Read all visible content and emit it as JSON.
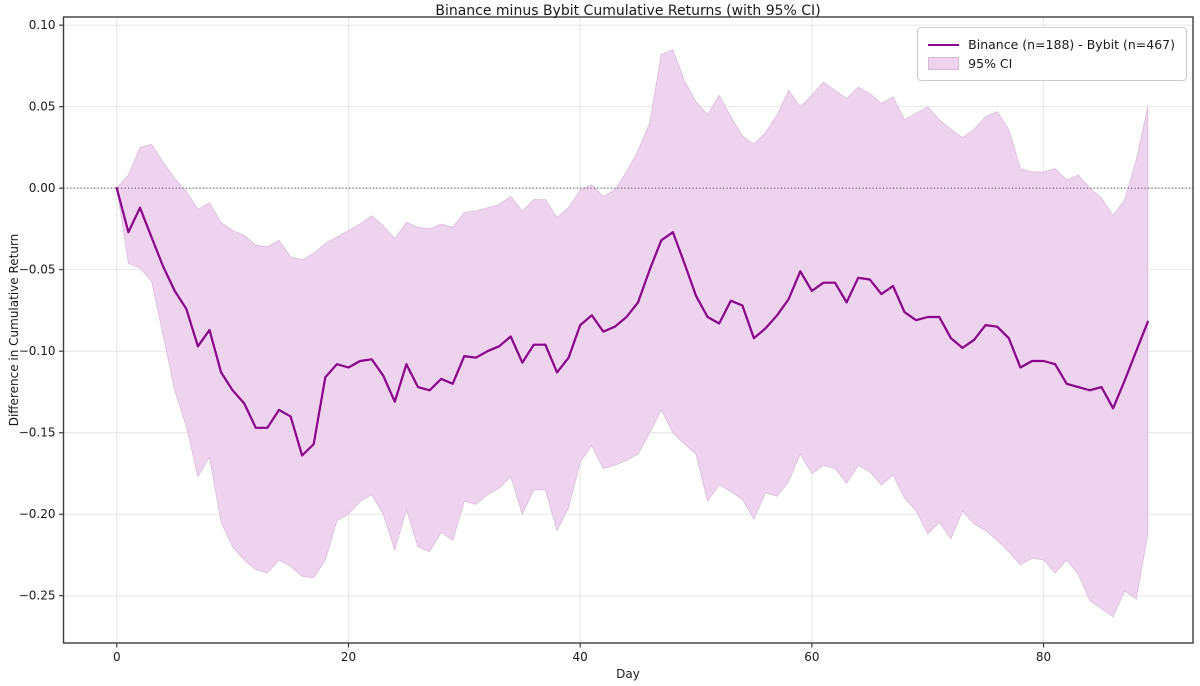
{
  "figure": {
    "title": "Binance minus Bybit Cumulative Returns (with 95% CI)",
    "xlabel": "Day",
    "ylabel": "Difference in Cumulative Return"
  },
  "legend": {
    "position": "upper right",
    "series_label": "Binance (n=188) - Bybit (n=467)",
    "ci_label": "95% CI"
  },
  "colors": {
    "line": "#8b008b",
    "band_fill": "#edd3ee",
    "band_edge": "#ddbade",
    "grid": "#e6e6e6",
    "spine": "#3c3c3c",
    "zero_line": "#333333",
    "text": "#1a1a1a",
    "background": "#ffffff"
  },
  "axes": {
    "xlim": [
      -4.6,
      92.9
    ],
    "ylim": [
      -0.279,
      0.105
    ],
    "x_ticks": {
      "values": [
        0,
        20,
        40,
        60,
        80
      ],
      "labels": [
        "0",
        "20",
        "40",
        "60",
        "80"
      ]
    },
    "y_ticks": {
      "values": [
        0.1,
        0.05,
        0.0,
        -0.05,
        -0.1,
        -0.15,
        -0.2,
        -0.25
      ],
      "labels": [
        "0.10",
        "0.05",
        "0.00",
        "−0.05",
        "−0.10",
        "−0.15",
        "−0.20",
        "−0.25"
      ]
    },
    "grid": true
  },
  "chart_data": {
    "type": "line",
    "title": "Binance minus Bybit Cumulative Returns (with 95% CI)",
    "xlabel": "Day",
    "ylabel": "Difference in Cumulative Return",
    "xlim": [
      -4.6,
      92.9
    ],
    "ylim": [
      -0.279,
      0.105
    ],
    "grid": true,
    "legend_position": "upper right",
    "zero_reference_line": 0.0,
    "x": [
      0,
      1,
      2,
      3,
      4,
      5,
      6,
      7,
      8,
      9,
      10,
      11,
      12,
      13,
      14,
      15,
      16,
      17,
      18,
      19,
      20,
      21,
      22,
      23,
      24,
      25,
      26,
      27,
      28,
      29,
      30,
      31,
      32,
      33,
      34,
      35,
      36,
      37,
      38,
      39,
      40,
      41,
      42,
      43,
      44,
      45,
      46,
      47,
      48,
      49,
      50,
      51,
      52,
      53,
      54,
      55,
      56,
      57,
      58,
      59,
      60,
      61,
      62,
      63,
      64,
      65,
      66,
      67,
      68,
      69,
      70,
      71,
      72,
      73,
      74,
      75,
      76,
      77,
      78,
      79,
      80,
      81,
      82,
      83,
      84,
      85,
      86,
      87,
      88,
      89
    ],
    "series": [
      {
        "name": "Binance (n=188) - Bybit (n=467)",
        "role": "mean_difference",
        "values": [
          0.0,
          -0.027,
          -0.012,
          -0.03,
          -0.048,
          -0.063,
          -0.074,
          -0.097,
          -0.087,
          -0.113,
          -0.124,
          -0.132,
          -0.147,
          -0.147,
          -0.136,
          -0.14,
          -0.164,
          -0.157,
          -0.116,
          -0.108,
          -0.11,
          -0.106,
          -0.105,
          -0.115,
          -0.131,
          -0.108,
          -0.122,
          -0.124,
          -0.117,
          -0.12,
          -0.103,
          -0.104,
          -0.1,
          -0.097,
          -0.091,
          -0.107,
          -0.096,
          -0.096,
          -0.113,
          -0.104,
          -0.084,
          -0.078,
          -0.088,
          -0.085,
          -0.079,
          -0.07,
          -0.05,
          -0.032,
          -0.027,
          -0.046,
          -0.066,
          -0.079,
          -0.083,
          -0.069,
          -0.072,
          -0.092,
          -0.086,
          -0.078,
          -0.068,
          -0.051,
          -0.063,
          -0.058,
          -0.058,
          -0.07,
          -0.055,
          -0.056,
          -0.065,
          -0.06,
          -0.076,
          -0.081,
          -0.079,
          -0.079,
          -0.092,
          -0.098,
          -0.093,
          -0.084,
          -0.085,
          -0.092,
          -0.11,
          -0.106,
          -0.106,
          -0.108,
          -0.12,
          -0.122,
          -0.124,
          -0.122,
          -0.135,
          -0.118,
          -0.1,
          -0.082
        ]
      },
      {
        "name": "95% CI upper",
        "role": "ci_upper",
        "values": [
          0.0,
          0.008,
          0.025,
          0.027,
          0.016,
          0.006,
          -0.002,
          -0.013,
          -0.009,
          -0.021,
          -0.026,
          -0.029,
          -0.035,
          -0.036,
          -0.032,
          -0.042,
          -0.044,
          -0.04,
          -0.034,
          -0.03,
          -0.026,
          -0.022,
          -0.017,
          -0.023,
          -0.031,
          -0.021,
          -0.024,
          -0.025,
          -0.022,
          -0.024,
          -0.015,
          -0.014,
          -0.012,
          -0.01,
          -0.005,
          -0.014,
          -0.007,
          -0.007,
          -0.018,
          -0.012,
          -0.001,
          0.002,
          -0.005,
          -0.001,
          0.01,
          0.023,
          0.04,
          0.082,
          0.085,
          0.066,
          0.053,
          0.045,
          0.057,
          0.044,
          0.032,
          0.027,
          0.034,
          0.045,
          0.06,
          0.05,
          0.057,
          0.065,
          0.06,
          0.055,
          0.062,
          0.058,
          0.052,
          0.056,
          0.042,
          0.046,
          0.05,
          0.042,
          0.036,
          0.031,
          0.036,
          0.044,
          0.047,
          0.036,
          0.012,
          0.01,
          0.01,
          0.012,
          0.005,
          0.008,
          0.0,
          -0.006,
          -0.017,
          -0.007,
          0.017,
          0.05
        ]
      },
      {
        "name": "95% CI lower",
        "role": "ci_lower",
        "values": [
          0.0,
          -0.046,
          -0.049,
          -0.057,
          -0.09,
          -0.124,
          -0.146,
          -0.177,
          -0.165,
          -0.205,
          -0.22,
          -0.228,
          -0.234,
          -0.236,
          -0.228,
          -0.232,
          -0.238,
          -0.239,
          -0.228,
          -0.204,
          -0.2,
          -0.192,
          -0.188,
          -0.2,
          -0.222,
          -0.197,
          -0.22,
          -0.223,
          -0.211,
          -0.216,
          -0.192,
          -0.194,
          -0.188,
          -0.184,
          -0.177,
          -0.2,
          -0.185,
          -0.185,
          -0.21,
          -0.196,
          -0.168,
          -0.158,
          -0.172,
          -0.17,
          -0.167,
          -0.163,
          -0.15,
          -0.136,
          -0.15,
          -0.157,
          -0.163,
          -0.192,
          -0.182,
          -0.186,
          -0.191,
          -0.203,
          -0.187,
          -0.189,
          -0.18,
          -0.163,
          -0.175,
          -0.17,
          -0.172,
          -0.181,
          -0.17,
          -0.174,
          -0.182,
          -0.176,
          -0.19,
          -0.198,
          -0.212,
          -0.205,
          -0.215,
          -0.198,
          -0.206,
          -0.21,
          -0.216,
          -0.223,
          -0.231,
          -0.227,
          -0.228,
          -0.236,
          -0.228,
          -0.237,
          -0.253,
          -0.258,
          -0.263,
          -0.247,
          -0.252,
          -0.212
        ]
      }
    ]
  }
}
